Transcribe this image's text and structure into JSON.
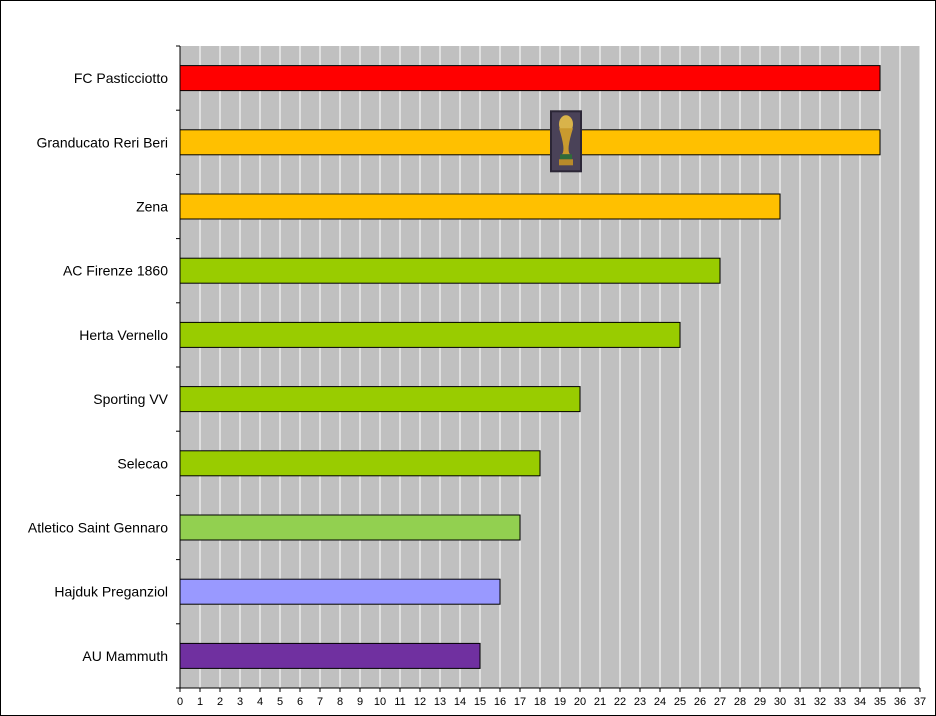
{
  "chart_data": {
    "type": "bar",
    "orientation": "horizontal",
    "categories": [
      "FC Pasticciotto",
      "Granducato Reri Beri",
      "Zena",
      "AC Firenze 1860",
      "Herta Vernello",
      "Sporting VV",
      "Selecao",
      "Atletico Saint Gennaro",
      "Hajduk Preganziol",
      "AU Mammuth"
    ],
    "values": [
      35,
      35,
      30,
      27,
      25,
      20,
      18,
      17,
      16,
      15
    ],
    "bar_colors": [
      "#ff0000",
      "#ffc000",
      "#ffc000",
      "#99cc00",
      "#99cc00",
      "#99cc00",
      "#99cc00",
      "#92d050",
      "#9999ff",
      "#7030a0"
    ],
    "xlim": [
      0,
      37
    ],
    "xticks": [
      0,
      1,
      2,
      3,
      4,
      5,
      6,
      7,
      8,
      9,
      10,
      11,
      12,
      13,
      14,
      15,
      16,
      17,
      18,
      19,
      20,
      21,
      22,
      23,
      24,
      25,
      26,
      27,
      28,
      29,
      30,
      31,
      32,
      33,
      34,
      35,
      36,
      37
    ],
    "grid": "vertical",
    "plot_background": "#c0c0c0",
    "gridline_color": "#ffffff",
    "legend": "none",
    "annotations": [
      {
        "type": "trophy-icon",
        "category": "Granducato Reri Beri",
        "x": 19.3
      }
    ]
  }
}
